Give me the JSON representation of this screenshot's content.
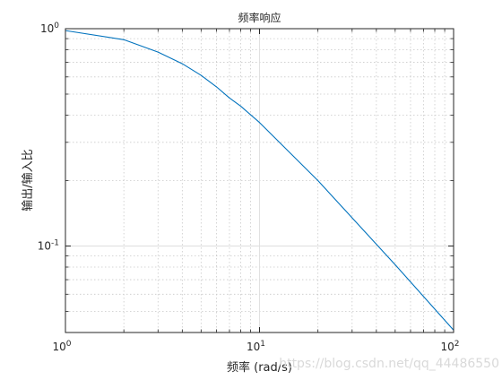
{
  "chart_data": {
    "type": "line",
    "title": "频率响应",
    "xlabel": "频率 (rad/s)",
    "ylabel": "输出/输入比",
    "x_scale": "log",
    "y_scale": "log",
    "xlim": [
      1,
      100
    ],
    "ylim": [
      0.04,
      1
    ],
    "grid": true,
    "minor_grid": true,
    "x_ticks": [
      {
        "base": "10",
        "exp": "0"
      },
      {
        "base": "10",
        "exp": "1"
      },
      {
        "base": "10",
        "exp": "2"
      }
    ],
    "y_ticks": [
      {
        "base": "10",
        "exp": "-1"
      },
      {
        "base": "10",
        "exp": "0"
      }
    ],
    "series": [
      {
        "color": "#0072BD",
        "x": [
          1,
          2,
          3,
          4,
          5,
          6,
          7,
          8,
          10,
          20,
          50,
          100
        ],
        "y": [
          0.98,
          0.89,
          0.78,
          0.69,
          0.61,
          0.54,
          0.48,
          0.44,
          0.37,
          0.2,
          0.082,
          0.041
        ]
      }
    ]
  },
  "watermark": "https://blog.csdn.net/qq_44486550"
}
